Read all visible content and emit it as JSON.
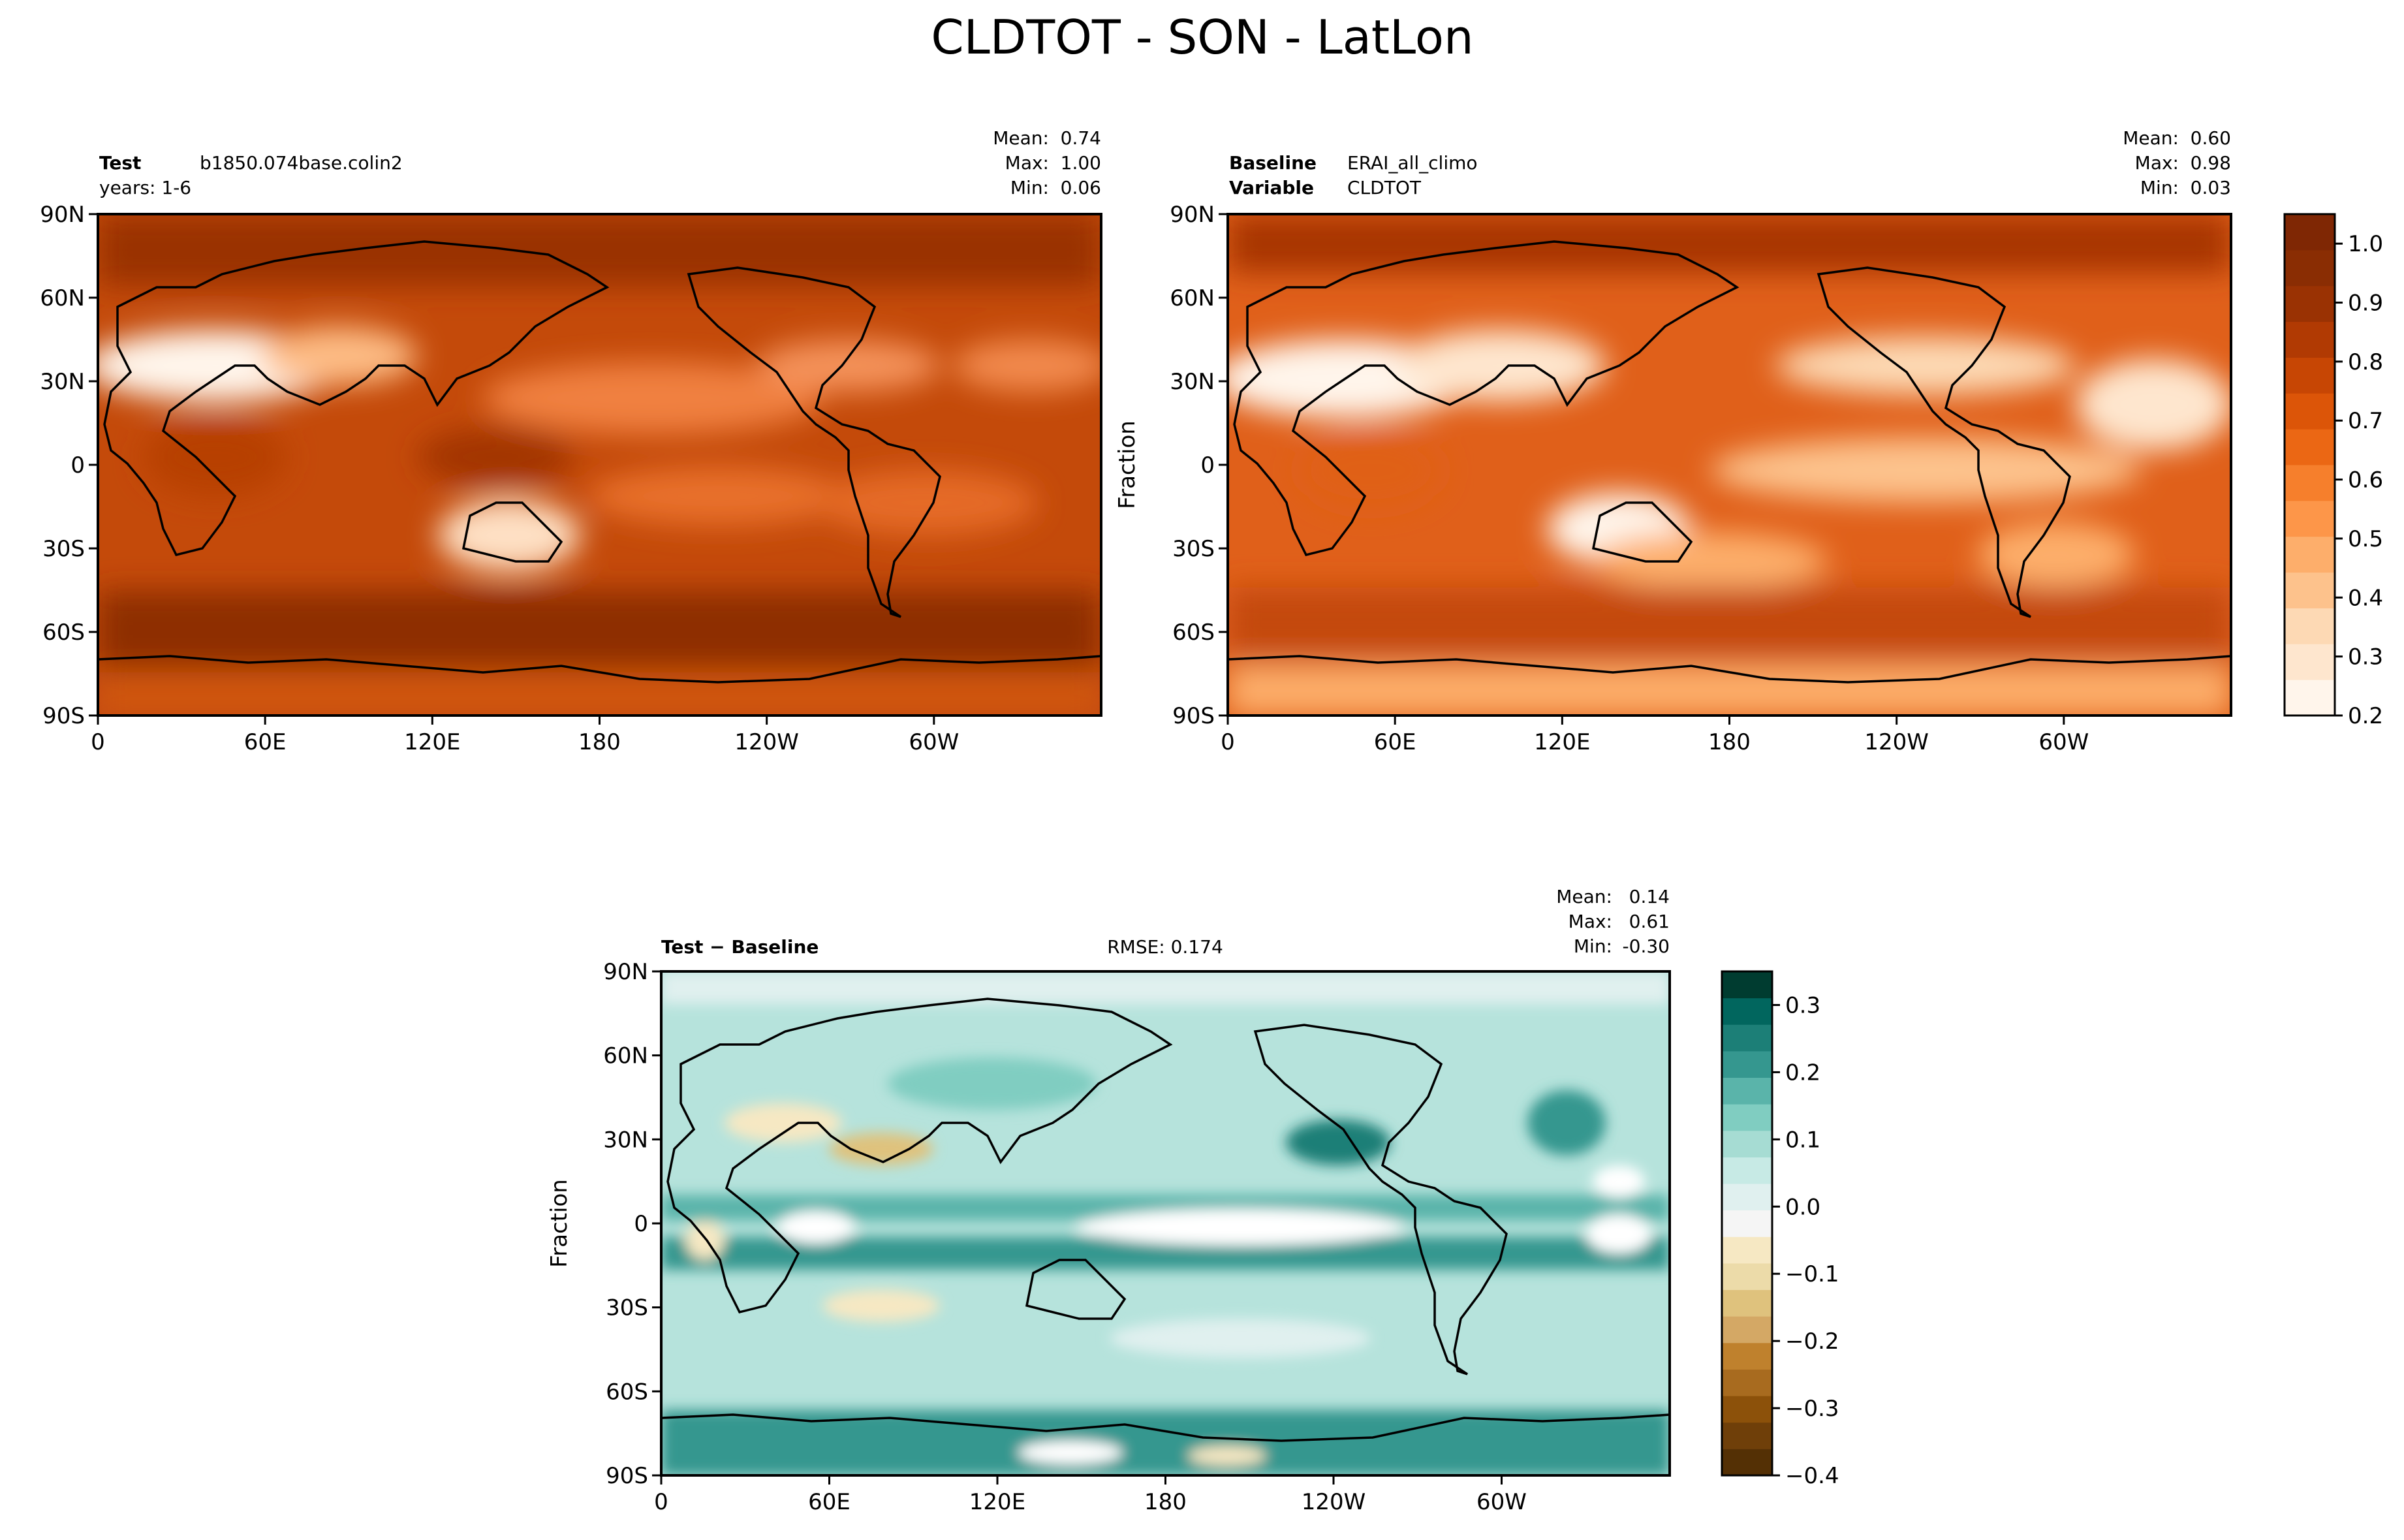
{
  "figure": {
    "title": "CLDTOT - SON - LatLon"
  },
  "chart_data": [
    {
      "type": "heatmap",
      "panel": "test",
      "left_label_bold": "Test",
      "left_label_value": "b1850.074base.colin2",
      "left_label_line2": "years: 1-6",
      "stats": {
        "mean": "0.74",
        "max": "1.00",
        "min": "0.06"
      },
      "stats_labels": {
        "mean": "Mean:",
        "max": "Max:",
        "min": "Min:"
      },
      "ylabel": "",
      "x_ticks": [
        "0",
        "60E",
        "120E",
        "180",
        "120W",
        "60W"
      ],
      "y_ticks": [
        "90N",
        "60N",
        "30N",
        "0",
        "30S",
        "60S",
        "90S"
      ],
      "xlim": [
        0,
        360
      ],
      "ylim": [
        -90,
        90
      ]
    },
    {
      "type": "heatmap",
      "panel": "baseline",
      "left_label_bold": "Baseline",
      "left_label_value": "ERAI_all_climo",
      "left_label_line2_bold": "Variable",
      "left_label_line2_value": "CLDTOT",
      "stats": {
        "mean": "0.60",
        "max": "0.98",
        "min": "0.03"
      },
      "stats_labels": {
        "mean": "Mean:",
        "max": "Max:",
        "min": "Min:"
      },
      "ylabel": "Fraction",
      "x_ticks": [
        "0",
        "60E",
        "120E",
        "180",
        "120W",
        "60W"
      ],
      "y_ticks": [
        "90N",
        "60N",
        "30N",
        "0",
        "30S",
        "60S",
        "90S"
      ],
      "xlim": [
        0,
        360
      ],
      "ylim": [
        -90,
        90
      ],
      "colorbar": {
        "ticks": [
          "1.0",
          "0.9",
          "0.8",
          "0.7",
          "0.6",
          "0.5",
          "0.4",
          "0.3",
          "0.2"
        ],
        "range": [
          0.2,
          1.05
        ],
        "colors": [
          "#fff5eb",
          "#fee6ce",
          "#fdd9b4",
          "#fdc28c",
          "#fdae6b",
          "#fd9649",
          "#f67f2c",
          "#eb6714",
          "#dc5508",
          "#c74604",
          "#b13a03",
          "#9a3203",
          "#8a2d03",
          "#7f2704"
        ]
      }
    },
    {
      "type": "heatmap",
      "panel": "difference",
      "left_label_bold": "Test − Baseline",
      "center_label": "RMSE: 0.174",
      "stats": {
        "mean": "0.14",
        "max": "0.61",
        "min": "-0.30"
      },
      "stats_labels": {
        "mean": "Mean:",
        "max": "Max:",
        "min": "Min:"
      },
      "ylabel": "Fraction",
      "x_ticks": [
        "0",
        "60E",
        "120E",
        "180",
        "120W",
        "60W"
      ],
      "y_ticks": [
        "90N",
        "60N",
        "30N",
        "0",
        "30S",
        "60S",
        "90S"
      ],
      "xlim": [
        0,
        360
      ],
      "ylim": [
        -90,
        90
      ],
      "colorbar": {
        "ticks": [
          "0.3",
          "0.2",
          "0.1",
          "0.0",
          "−0.1",
          "−0.2",
          "−0.3",
          "−0.4"
        ],
        "range": [
          -0.4,
          0.35
        ],
        "colors": [
          "#543005",
          "#6f3f09",
          "#8c510a",
          "#a86b1f",
          "#bf812d",
          "#d4a865",
          "#dfc27d",
          "#ecdba9",
          "#f6e8c3",
          "#f5f5f5",
          "#e0f0ef",
          "#c7eae5",
          "#a6dcd3",
          "#80cdc1",
          "#5ab4aa",
          "#35978f",
          "#1c7f77",
          "#01665e",
          "#003c30"
        ]
      }
    }
  ]
}
